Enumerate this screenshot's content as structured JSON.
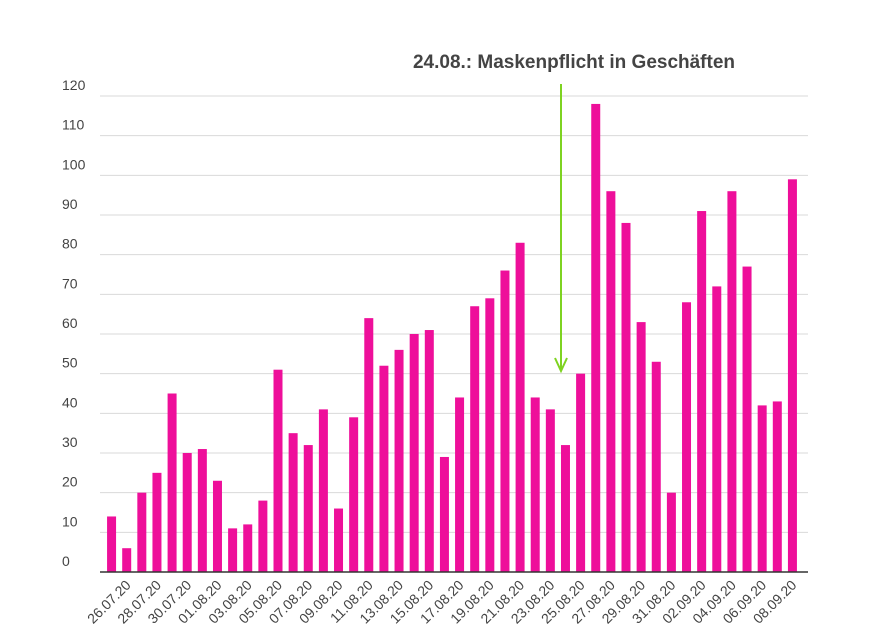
{
  "chart_data": {
    "type": "bar",
    "annotation": "24.08.: Maskenpflicht in Geschäften",
    "categories": [
      null,
      "26.07.20",
      null,
      "28.07.20",
      null,
      "30.07.20",
      null,
      "01.08.20",
      null,
      "03.08.20",
      null,
      "05.08.20",
      null,
      "07.08.20",
      null,
      "09.08.20",
      null,
      "11.08.20",
      null,
      "13.08.20",
      null,
      "15.08.20",
      null,
      "17.08.20",
      null,
      "19.08.20",
      null,
      "21.08.20",
      null,
      "23.08.20",
      null,
      "25.08.20",
      null,
      "27.08.20",
      null,
      "29.08.20",
      null,
      "31.08.20",
      null,
      "02.09.20",
      null,
      "04.09.20",
      null,
      "06.09.20",
      null,
      "08.09.20"
    ],
    "values": [
      14,
      6,
      20,
      25,
      45,
      30,
      31,
      23,
      11,
      12,
      18,
      51,
      35,
      32,
      41,
      16,
      39,
      64,
      52,
      56,
      60,
      61,
      29,
      44,
      67,
      69,
      76,
      83,
      44,
      41,
      32,
      50,
      118,
      96,
      88,
      63,
      53,
      20,
      68,
      91,
      72,
      96,
      77,
      42,
      43,
      99
    ],
    "color": "#ee0f9a",
    "ylim": [
      0,
      120
    ],
    "yticks": [
      0,
      10,
      20,
      30,
      40,
      50,
      60,
      70,
      80,
      90,
      100,
      110,
      120
    ],
    "grid": true
  }
}
